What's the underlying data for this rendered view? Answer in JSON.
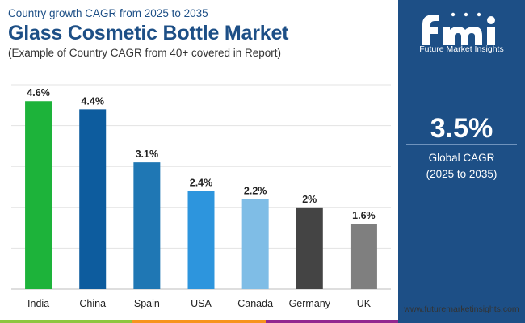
{
  "header": {
    "subtitle": "Country growth CAGR from 2025 to 2035",
    "title": "Glass Cosmetic Bottle Market",
    "caption": "(Example of Country CAGR from 40+ covered in Report)"
  },
  "panel": {
    "logo_text": "Future Market Insights",
    "global_value": "3.5%",
    "global_label": "Global CAGR",
    "global_period": "(2025 to 2035)",
    "website": "www.futuremarketinsights.com"
  },
  "colors": {
    "brand": "#1d4f86",
    "bottom_bar": [
      "#8dc63f",
      "#f7941d",
      "#92278f"
    ]
  },
  "chart_data": {
    "type": "bar",
    "title": "Glass Cosmetic Bottle Market",
    "xlabel": "",
    "ylabel": "",
    "ylim": [
      0,
      5
    ],
    "grid": true,
    "categories": [
      "India",
      "China",
      "Spain",
      "USA",
      "Canada",
      "Germany",
      "UK"
    ],
    "values": [
      4.6,
      4.4,
      3.1,
      2.4,
      2.2,
      2.0,
      1.6
    ],
    "labels": [
      "4.6%",
      "4.4%",
      "3.1%",
      "2.4%",
      "2.2%",
      "2%",
      "1.6%"
    ],
    "colors": [
      "#1db33a",
      "#0d5c9e",
      "#1f77b4",
      "#2d95dd",
      "#7fbde6",
      "#444444",
      "#7f7f7f"
    ]
  }
}
